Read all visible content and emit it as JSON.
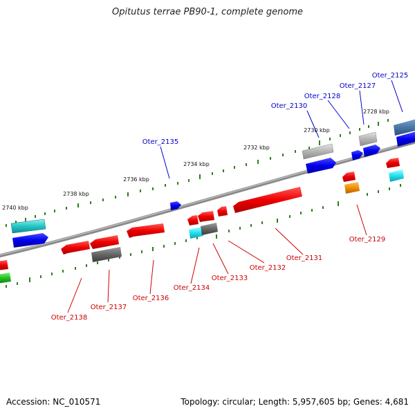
{
  "title": "Opitutus terrae PB90-1, complete genome",
  "footer": {
    "accession": "Accession: NC_010571",
    "topology": "Topology: circular; Length: 5,957,605 bp; Genes: 4,681"
  },
  "colors": {
    "backbone": "#8a8a8a",
    "tick": "#2e7d1e",
    "forward_label": "#0000cc",
    "reverse_label": "#cc0000"
  },
  "kbp_marks": [
    "2728 kbp",
    "2730 kbp",
    "2732 kbp",
    "2734 kbp",
    "2736 kbp",
    "2738 kbp",
    "2740 kbp"
  ],
  "gene_labels": {
    "forward": [
      "Oter_2125",
      "Oter_2127",
      "Oter_2128",
      "Oter_2130",
      "Oter_2135"
    ],
    "reverse": [
      "Oter_2129",
      "Oter_2131",
      "Oter_2132",
      "Oter_2133",
      "Oter_2134",
      "Oter_2136",
      "Oter_2137",
      "Oter_2138"
    ]
  }
}
